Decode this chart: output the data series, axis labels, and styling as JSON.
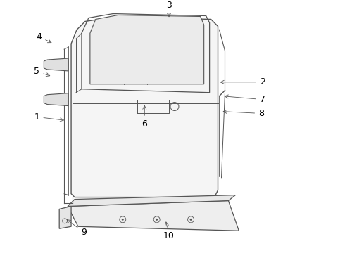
{
  "bg_color": "#ffffff",
  "line_color": "#555555",
  "label_color": "#000000",
  "label_fontsize": 9,
  "arrow_lw": 0.6,
  "door_lw": 1.0
}
